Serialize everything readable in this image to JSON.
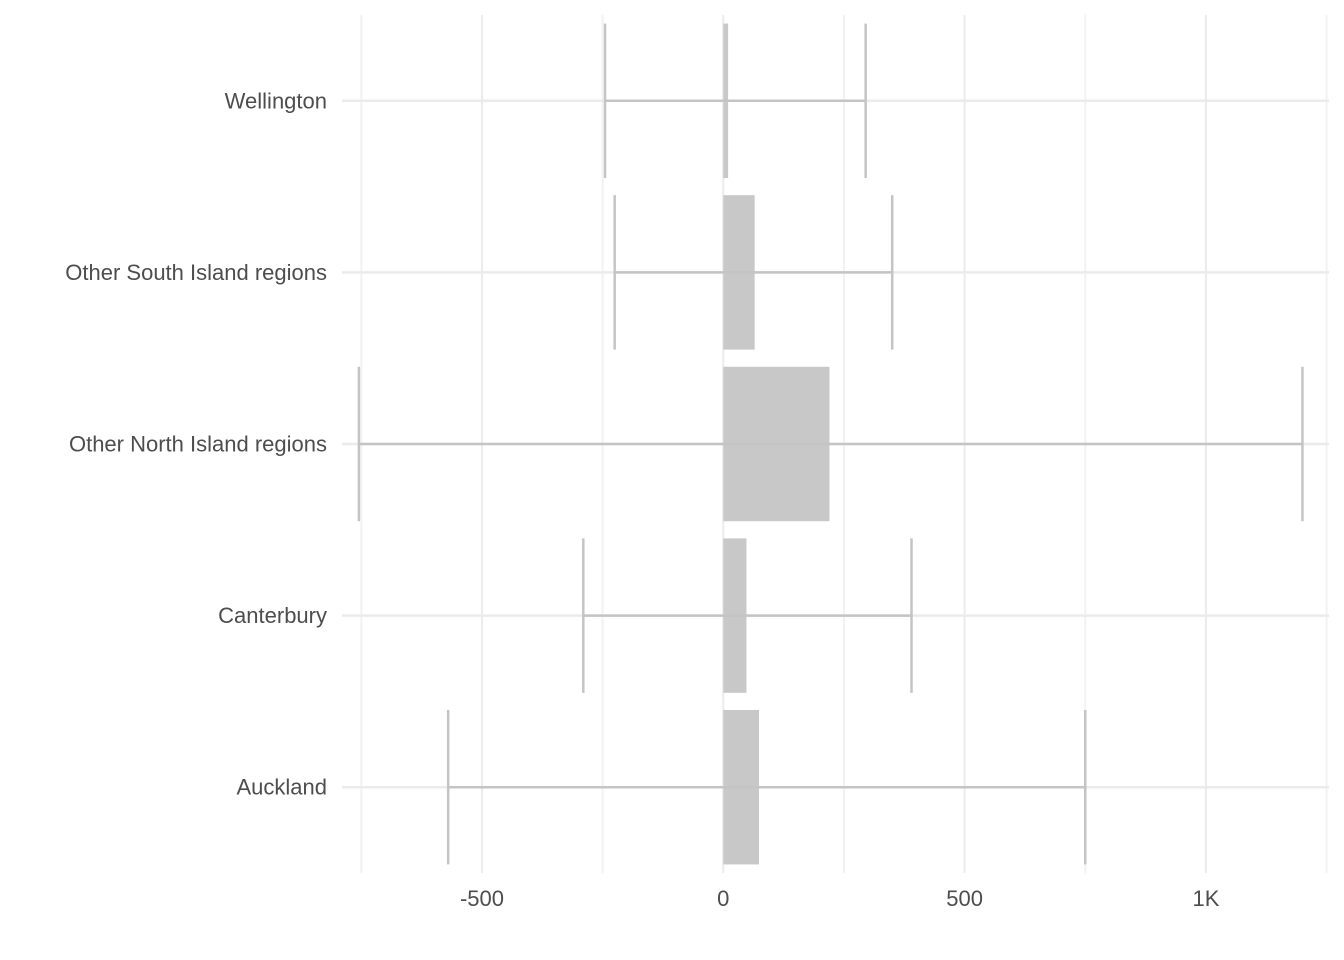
{
  "chart_data": {
    "type": "bar",
    "orientation": "horizontal",
    "title": "",
    "xlabel": "",
    "ylabel": "",
    "categories": [
      "Auckland",
      "Canterbury",
      "Other North Island regions",
      "Other South Island regions",
      "Wellington"
    ],
    "values": [
      74,
      48,
      220,
      65,
      10
    ],
    "error_low": [
      -570,
      -290,
      -755,
      -225,
      -245
    ],
    "error_high": [
      750,
      390,
      1200,
      350,
      295
    ],
    "xlim": [
      -790,
      1255
    ],
    "x_ticks": [
      -500,
      0,
      500,
      1000
    ],
    "x_tick_labels": [
      "-500",
      "0",
      "500",
      "1K"
    ],
    "grid": true,
    "legend": "none",
    "colors": {
      "bar": "#c8c8c8",
      "errorbar": "#c4c4c4",
      "grid_major": "#ebebeb",
      "grid_minor": "#f2f2f2",
      "text": "#4d4d4d"
    }
  }
}
